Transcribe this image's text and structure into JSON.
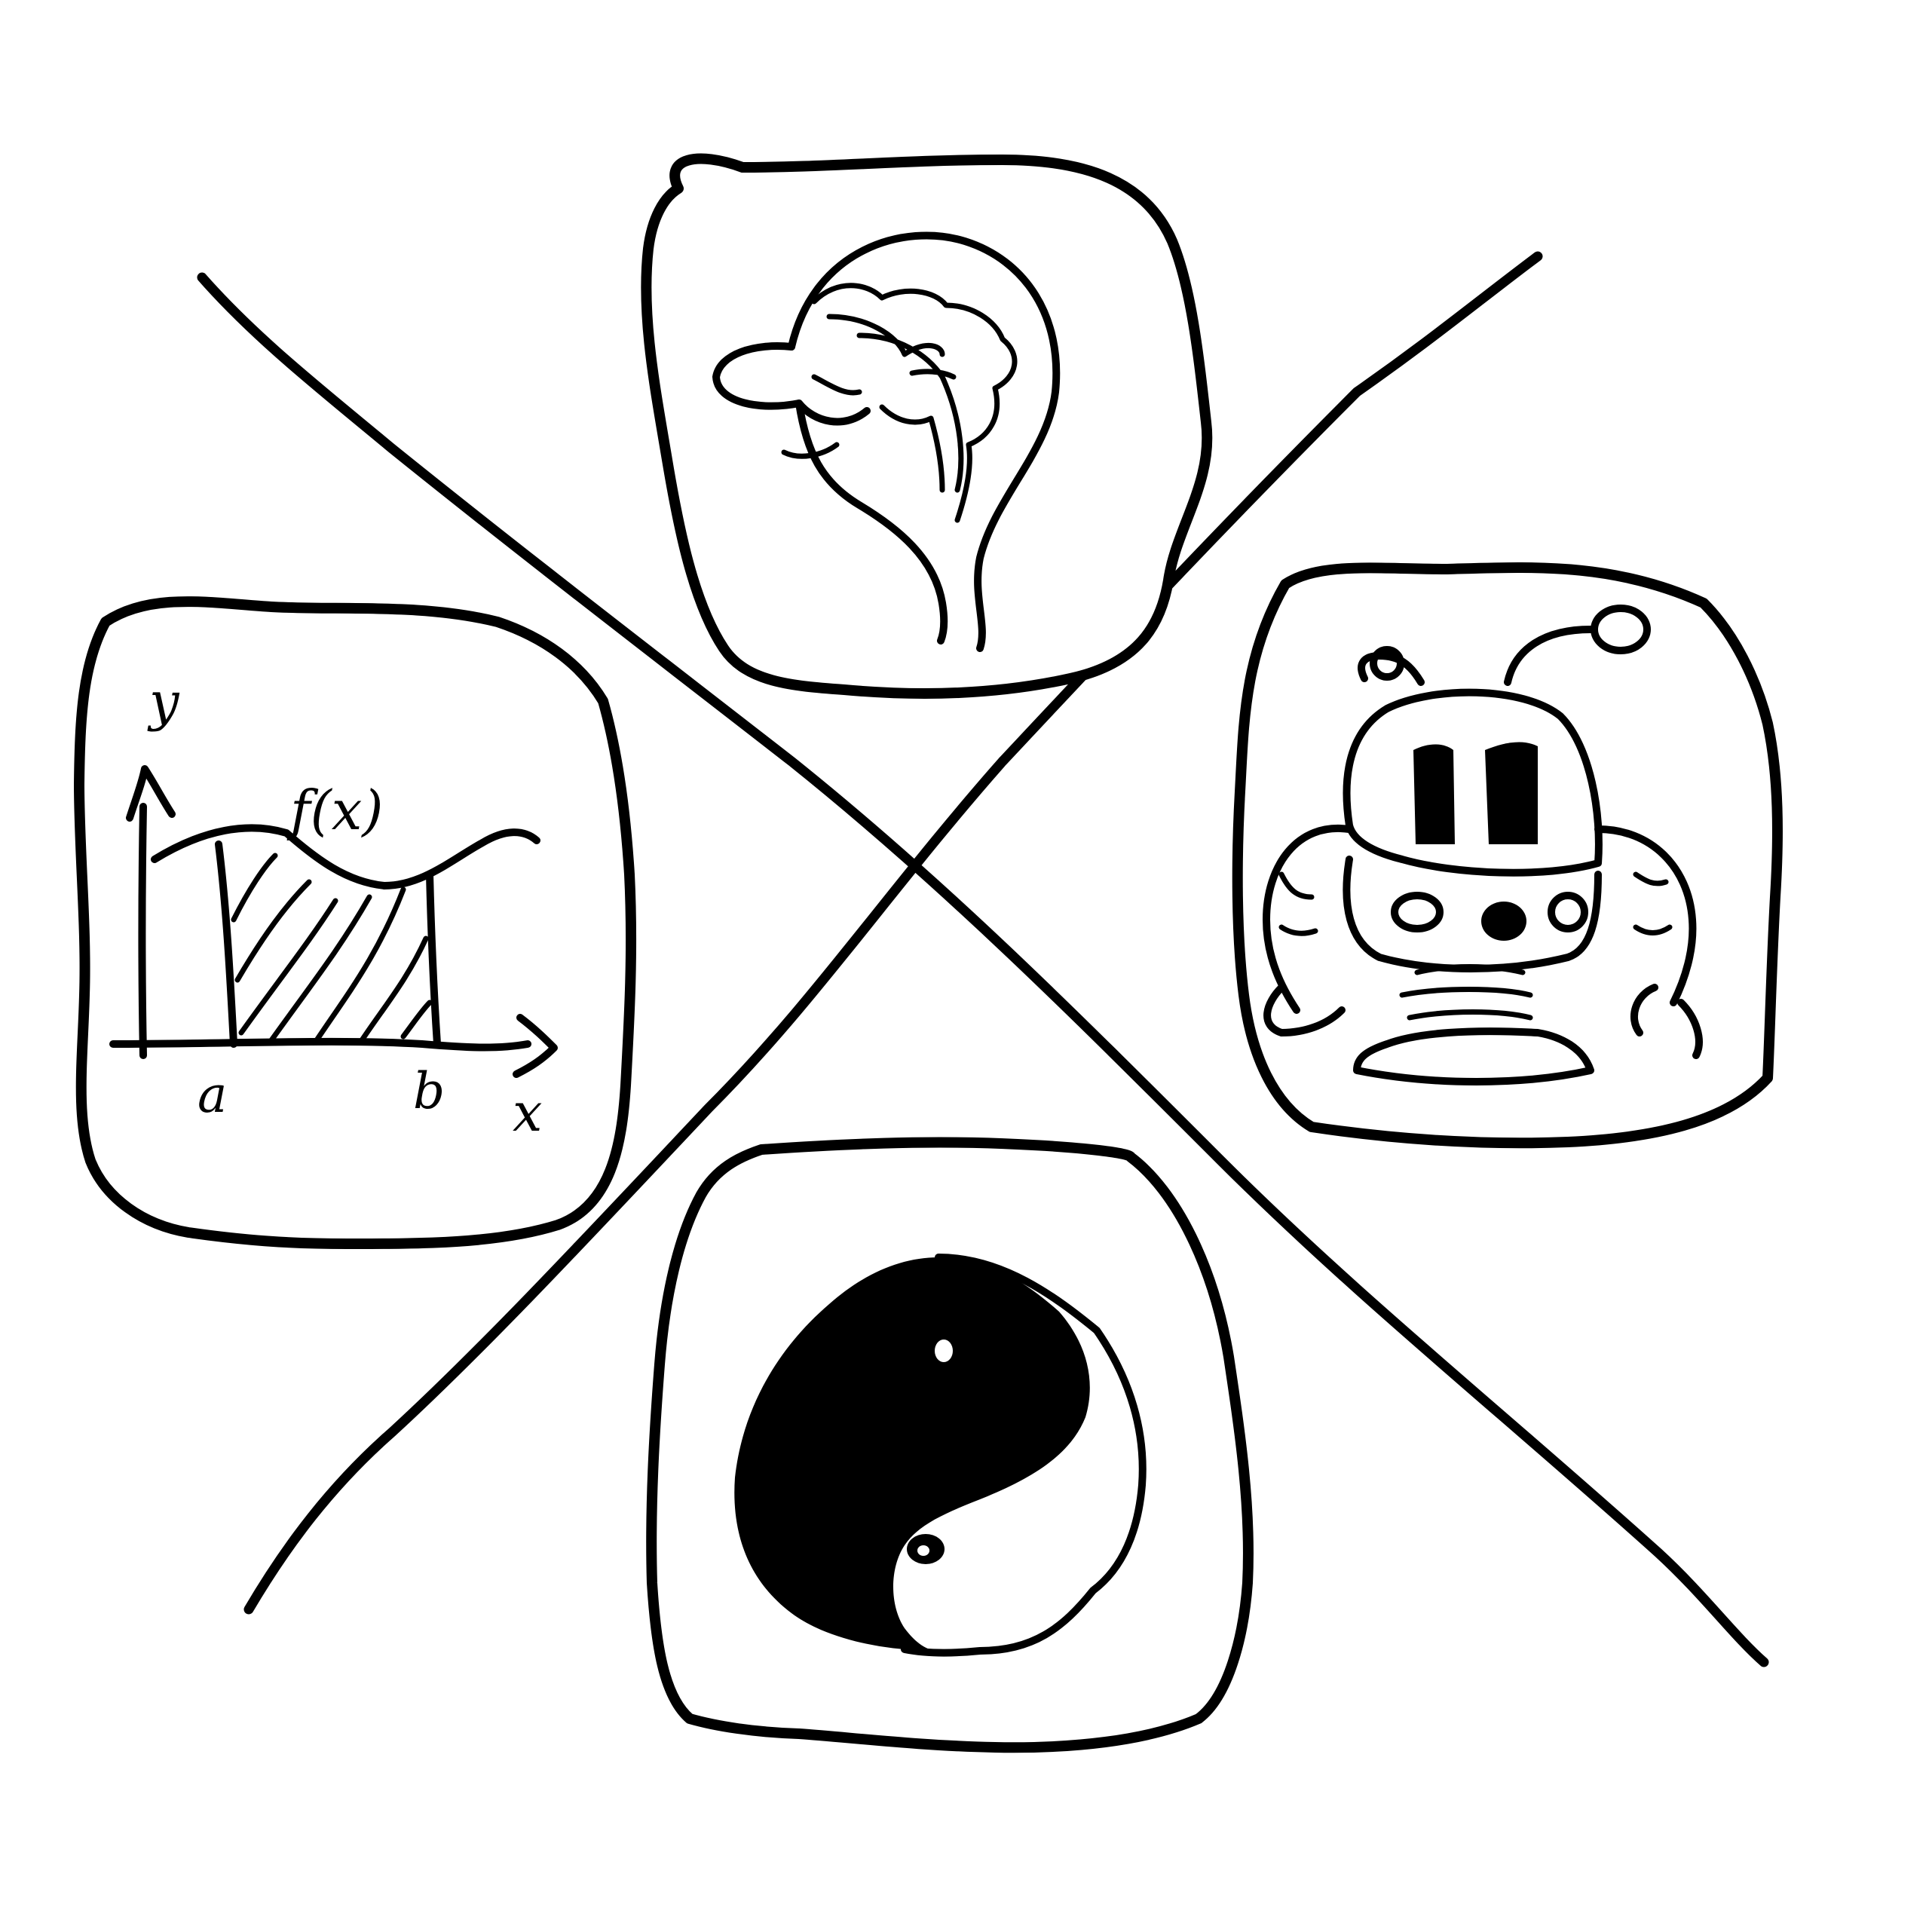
{
  "illustration": {
    "panels": [
      {
        "id": "brain",
        "icon": "brain-icon"
      },
      {
        "id": "math",
        "icon": "integral-graph-icon"
      },
      {
        "id": "robot",
        "icon": "robot-icon"
      },
      {
        "id": "yinyang",
        "icon": "yin-yang-icon"
      }
    ],
    "math_labels": {
      "y_axis": "y",
      "function": "f(x)",
      "lower_bound": "a",
      "upper_bound": "b",
      "x_axis": "x"
    }
  }
}
